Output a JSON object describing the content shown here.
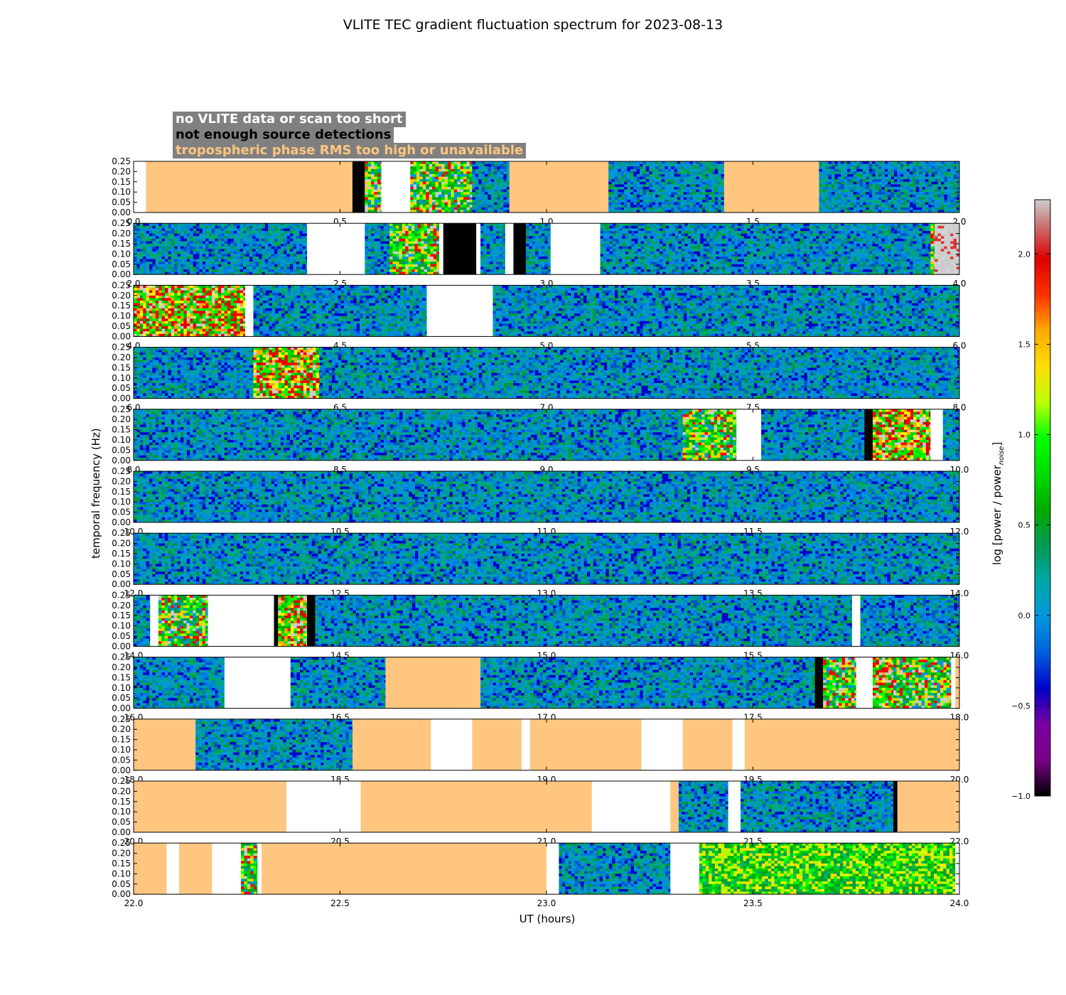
{
  "chart_data": {
    "type": "heatmap",
    "title": "VLITE TEC gradient fluctuation spectrum for 2023-08-13",
    "xlabel": "UT (hours)",
    "ylabel": "temporal frequency (Hz)",
    "colorbar": {
      "label_base": "log [power / power",
      "label_sub": "noise",
      "label_end": "]",
      "range": [
        -1.0,
        2.3
      ],
      "ticks": [
        "−1.0",
        "−0.5",
        "0.0",
        "0.5",
        "1.0",
        "1.5",
        "2.0"
      ],
      "tick_values": [
        -1.0,
        -0.5,
        0.0,
        0.5,
        1.0,
        1.5,
        2.0
      ],
      "colormap": "nipy_spectral"
    },
    "legend": [
      {
        "label": "no VLITE data or scan too short",
        "color": "#ffffff"
      },
      {
        "label": "not enough source detections",
        "color": "#000000"
      },
      {
        "label": "tropospheric phase RMS too high or unavailable",
        "color": "#ffc67f"
      }
    ],
    "y_ticks": [
      "0.00",
      "0.05",
      "0.10",
      "0.15",
      "0.20",
      "0.25"
    ],
    "y_range": [
      0,
      0.25
    ],
    "panels": [
      {
        "xlim": [
          0,
          2
        ],
        "ticks": [
          "0.0",
          "0.5",
          "1.0",
          "1.5",
          "2.0"
        ],
        "segments": [
          [
            0,
            0.03,
            "white"
          ],
          [
            0.03,
            0.53,
            "tropo"
          ],
          [
            0.53,
            0.56,
            "black"
          ],
          [
            0.56,
            0.6,
            "active"
          ],
          [
            0.6,
            0.67,
            "white"
          ],
          [
            0.67,
            0.82,
            "active"
          ],
          [
            0.82,
            0.91,
            "quiet"
          ],
          [
            0.91,
            1.15,
            "tropo"
          ],
          [
            1.15,
            1.43,
            "quiet"
          ],
          [
            1.43,
            1.66,
            "tropo"
          ],
          [
            1.66,
            2.0,
            "quiet"
          ]
        ]
      },
      {
        "xlim": [
          2,
          4
        ],
        "ticks": [
          "2.0",
          "2.5",
          "3.0",
          "3.5",
          "4.0"
        ],
        "segments": [
          [
            2.0,
            2.42,
            "quiet"
          ],
          [
            2.42,
            2.56,
            "white"
          ],
          [
            2.56,
            2.62,
            "quiet"
          ],
          [
            2.62,
            2.74,
            "active"
          ],
          [
            2.74,
            2.75,
            "white"
          ],
          [
            2.75,
            2.83,
            "black"
          ],
          [
            2.83,
            2.84,
            "white"
          ],
          [
            2.84,
            2.9,
            "quiet"
          ],
          [
            2.9,
            2.92,
            "white"
          ],
          [
            2.92,
            2.95,
            "black"
          ],
          [
            2.95,
            3.01,
            "quiet"
          ],
          [
            3.01,
            3.13,
            "white"
          ],
          [
            3.13,
            3.93,
            "quiet"
          ],
          [
            3.93,
            3.94,
            "active"
          ],
          [
            3.94,
            4.0,
            "grey"
          ]
        ]
      },
      {
        "xlim": [
          4,
          6
        ],
        "ticks": [
          "4.0",
          "4.5",
          "5.0",
          "5.5",
          "6.0"
        ],
        "segments": [
          [
            4.0,
            4.27,
            "hot"
          ],
          [
            4.27,
            4.29,
            "white"
          ],
          [
            4.29,
            4.71,
            "quiet"
          ],
          [
            4.71,
            4.87,
            "white"
          ],
          [
            4.87,
            6.0,
            "quiet"
          ]
        ]
      },
      {
        "xlim": [
          6,
          8
        ],
        "ticks": [
          "6.0",
          "6.5",
          "7.0",
          "7.5",
          "8.0"
        ],
        "segments": [
          [
            6.0,
            6.29,
            "quiet"
          ],
          [
            6.29,
            6.45,
            "hot"
          ],
          [
            6.45,
            8.0,
            "quiet"
          ]
        ]
      },
      {
        "xlim": [
          8,
          10
        ],
        "ticks": [
          "8.0",
          "8.5",
          "9.0",
          "9.5",
          "10.0"
        ],
        "segments": [
          [
            8.0,
            9.33,
            "quiet"
          ],
          [
            9.33,
            9.46,
            "active"
          ],
          [
            9.46,
            9.52,
            "white"
          ],
          [
            9.52,
            9.77,
            "quiet"
          ],
          [
            9.77,
            9.79,
            "black"
          ],
          [
            9.79,
            9.93,
            "hot"
          ],
          [
            9.93,
            9.96,
            "white"
          ],
          [
            9.96,
            10.0,
            "quiet"
          ]
        ]
      },
      {
        "xlim": [
          10,
          12
        ],
        "ticks": [
          "10.0",
          "10.5",
          "11.0",
          "11.5",
          "12.0"
        ],
        "segments": [
          [
            10.0,
            12.0,
            "quiet"
          ]
        ]
      },
      {
        "xlim": [
          12,
          14
        ],
        "ticks": [
          "12.0",
          "12.5",
          "13.0",
          "13.5",
          "14.0"
        ],
        "segments": [
          [
            12.0,
            14.0,
            "quiet"
          ]
        ]
      },
      {
        "xlim": [
          14,
          16
        ],
        "ticks": [
          "14.0",
          "14.5",
          "15.0",
          "15.5",
          "16.0"
        ],
        "segments": [
          [
            14.0,
            14.04,
            "quiet"
          ],
          [
            14.04,
            14.06,
            "white"
          ],
          [
            14.06,
            14.18,
            "active"
          ],
          [
            14.18,
            14.34,
            "white"
          ],
          [
            14.34,
            14.35,
            "black"
          ],
          [
            14.35,
            14.42,
            "hot"
          ],
          [
            14.42,
            14.44,
            "black"
          ],
          [
            14.44,
            15.74,
            "quiet"
          ],
          [
            15.74,
            15.76,
            "white"
          ],
          [
            15.76,
            16.0,
            "quiet"
          ]
        ]
      },
      {
        "xlim": [
          16,
          18
        ],
        "ticks": [
          "16.0",
          "16.5",
          "17.0",
          "17.5",
          "18.0"
        ],
        "segments": [
          [
            16.0,
            16.22,
            "quiet"
          ],
          [
            16.22,
            16.38,
            "white"
          ],
          [
            16.38,
            16.61,
            "quiet"
          ],
          [
            16.61,
            16.84,
            "tropo"
          ],
          [
            16.84,
            17.65,
            "quiet"
          ],
          [
            17.65,
            17.67,
            "black"
          ],
          [
            17.67,
            17.75,
            "active"
          ],
          [
            17.75,
            17.79,
            "white"
          ],
          [
            17.79,
            17.84,
            "hot"
          ],
          [
            17.84,
            17.98,
            "active"
          ],
          [
            17.98,
            17.99,
            "white"
          ],
          [
            17.99,
            18.0,
            "tropo"
          ]
        ]
      },
      {
        "xlim": [
          18,
          20
        ],
        "ticks": [
          "18.0",
          "18.5",
          "19.0",
          "19.5",
          "20.0"
        ],
        "segments": [
          [
            18.0,
            18.15,
            "tropo"
          ],
          [
            18.15,
            18.53,
            "quiet"
          ],
          [
            18.53,
            18.72,
            "tropo"
          ],
          [
            18.72,
            18.82,
            "white"
          ],
          [
            18.82,
            18.94,
            "tropo"
          ],
          [
            18.94,
            18.96,
            "white"
          ],
          [
            18.96,
            19.23,
            "tropo"
          ],
          [
            19.23,
            19.33,
            "white"
          ],
          [
            19.33,
            19.45,
            "tropo"
          ],
          [
            19.45,
            19.48,
            "white"
          ],
          [
            19.48,
            20.0,
            "tropo"
          ]
        ]
      },
      {
        "xlim": [
          20,
          22
        ],
        "ticks": [
          "20.0",
          "20.5",
          "21.0",
          "21.5",
          "22.0"
        ],
        "segments": [
          [
            20.0,
            20.37,
            "tropo"
          ],
          [
            20.37,
            20.55,
            "white"
          ],
          [
            20.55,
            21.11,
            "tropo"
          ],
          [
            21.11,
            21.3,
            "white"
          ],
          [
            21.3,
            21.32,
            "tropo"
          ],
          [
            21.32,
            21.44,
            "quiet"
          ],
          [
            21.44,
            21.47,
            "white"
          ],
          [
            21.47,
            21.84,
            "quiet"
          ],
          [
            21.84,
            21.85,
            "black"
          ],
          [
            21.85,
            22.0,
            "tropo"
          ]
        ]
      },
      {
        "xlim": [
          22,
          24
        ],
        "ticks": [
          "22.0",
          "22.5",
          "23.0",
          "23.5",
          "24.0"
        ],
        "segments": [
          [
            22.0,
            22.08,
            "tropo"
          ],
          [
            22.08,
            22.11,
            "white"
          ],
          [
            22.11,
            22.19,
            "tropo"
          ],
          [
            22.19,
            22.26,
            "white"
          ],
          [
            22.26,
            22.3,
            "active"
          ],
          [
            22.3,
            22.31,
            "white"
          ],
          [
            22.31,
            23.0,
            "tropo"
          ],
          [
            23.0,
            23.03,
            "white"
          ],
          [
            23.03,
            23.3,
            "quiet"
          ],
          [
            23.3,
            23.37,
            "white"
          ],
          [
            23.37,
            23.99,
            "bright"
          ],
          [
            23.99,
            24.0,
            "white"
          ]
        ]
      }
    ]
  }
}
